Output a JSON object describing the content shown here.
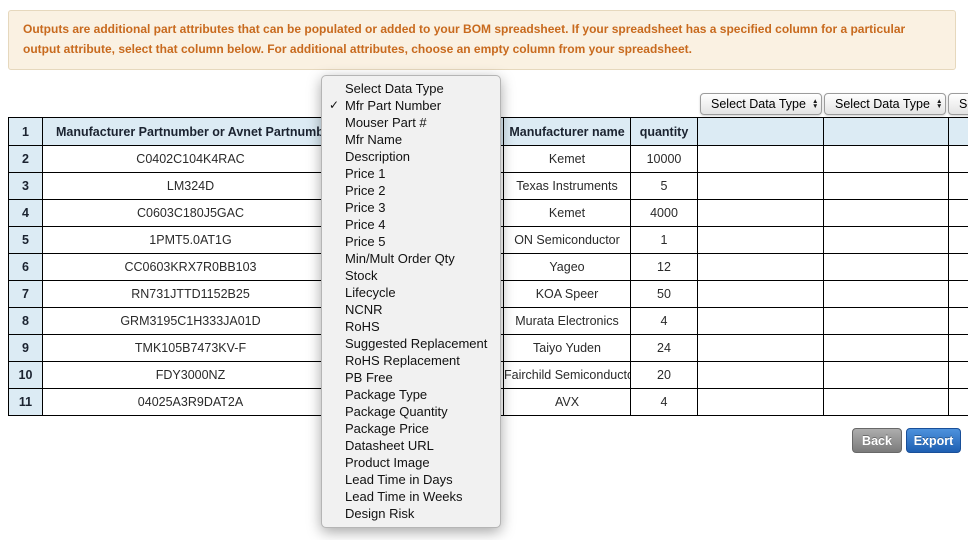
{
  "banner": {
    "text": "Outputs are additional part attributes that can be populated or added to your BOM spreadsheet. If your spreadsheet has a specified column for a particular output attribute, select that column below. For additional attributes, choose an empty column from your spreadsheet."
  },
  "column_selects": [
    {
      "label": "Select Data Type"
    },
    {
      "label": "Select Data Type"
    },
    {
      "label": "Select Data Type"
    }
  ],
  "dropdown_menu": {
    "selected": "Mfr Part Number",
    "items": [
      {
        "label": "Select Data Type",
        "checked": false
      },
      {
        "label": "Mfr Part Number",
        "checked": true
      },
      {
        "label": "Mouser Part #",
        "checked": false
      },
      {
        "label": "Mfr Name",
        "checked": false
      },
      {
        "label": "Description",
        "checked": false
      },
      {
        "label": "Price 1",
        "checked": false
      },
      {
        "label": "Price 2",
        "checked": false
      },
      {
        "label": "Price 3",
        "checked": false
      },
      {
        "label": "Price 4",
        "checked": false
      },
      {
        "label": "Price 5",
        "checked": false
      },
      {
        "label": "Min/Mult Order Qty",
        "checked": false
      },
      {
        "label": "Stock",
        "checked": false
      },
      {
        "label": "Lifecycle",
        "checked": false
      },
      {
        "label": "NCNR",
        "checked": false
      },
      {
        "label": "RoHS",
        "checked": false
      },
      {
        "label": "Suggested Replacement",
        "checked": false
      },
      {
        "label": "RoHS Replacement",
        "checked": false
      },
      {
        "label": "PB Free",
        "checked": false
      },
      {
        "label": "Package Type",
        "checked": false
      },
      {
        "label": "Package Quantity",
        "checked": false
      },
      {
        "label": "Package Price",
        "checked": false
      },
      {
        "label": "Datasheet URL",
        "checked": false
      },
      {
        "label": "Product Image",
        "checked": false
      },
      {
        "label": "Lead Time in Days",
        "checked": false
      },
      {
        "label": "Lead Time in Weeks",
        "checked": false
      },
      {
        "label": "Design Risk",
        "checked": false
      }
    ]
  },
  "table": {
    "columns": [
      {
        "key": "num",
        "label": "1"
      },
      {
        "key": "part",
        "label": "Manufacturer Partnumber or Avnet Partnumber"
      },
      {
        "key": "hidden",
        "label": ""
      },
      {
        "key": "mfr",
        "label": "Manufacturer name"
      },
      {
        "key": "qty",
        "label": "quantity"
      },
      {
        "key": "extra1",
        "label": ""
      },
      {
        "key": "extra2",
        "label": ""
      },
      {
        "key": "extra3",
        "label": ""
      }
    ],
    "rows": [
      {
        "num": "2",
        "part": "C0402C104K4RAC",
        "mfr": "Kemet",
        "qty": "10000"
      },
      {
        "num": "3",
        "part": "LM324D",
        "mfr": "Texas Instruments",
        "qty": "5"
      },
      {
        "num": "4",
        "part": "C0603C180J5GAC",
        "mfr": "Kemet",
        "qty": "4000"
      },
      {
        "num": "5",
        "part": "1PMT5.0AT1G",
        "mfr": "ON Semiconductor",
        "qty": "1"
      },
      {
        "num": "6",
        "part": "CC0603KRX7R0BB103",
        "mfr": "Yageo",
        "qty": "12"
      },
      {
        "num": "7",
        "part": "RN731JTTD1152B25",
        "mfr": "KOA Speer",
        "qty": "50"
      },
      {
        "num": "8",
        "part": "GRM3195C1H333JA01D",
        "mfr": "Murata Electronics",
        "qty": "4"
      },
      {
        "num": "9",
        "part": "TMK105B7473KV-F",
        "mfr": "Taiyo Yuden",
        "qty": "24"
      },
      {
        "num": "10",
        "part": "FDY3000NZ",
        "mfr": "Fairchild Semiconductor",
        "qty": "20"
      },
      {
        "num": "11",
        "part": "04025A3R9DAT2A",
        "mfr": "AVX",
        "qty": "4"
      }
    ]
  },
  "buttons": {
    "back": "Back",
    "export": "Export"
  },
  "icons": {
    "checkmark": "✓",
    "arrow_up": "▲",
    "arrow_down": "▼"
  },
  "colors": {
    "banner_text": "#c86a1e",
    "banner_bg": "#faf1e2",
    "header_bg": "#dcebf4",
    "export_button_blue": "#1e5fb2",
    "back_button_gray": "#8a8a8a"
  }
}
